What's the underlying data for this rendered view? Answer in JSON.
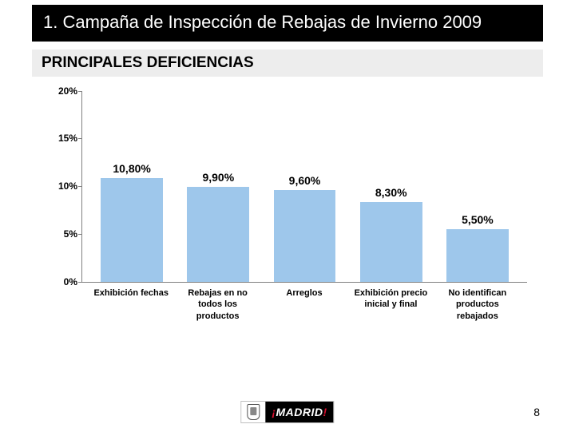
{
  "title": "1. Campaña de Inspección de Rebajas de Invierno 2009",
  "subtitle": "PRINCIPALES DEFICIENCIAS",
  "chart": {
    "type": "bar",
    "background_color": "#ffffff",
    "axis_color": "#808080",
    "bar_color": "#9ec7eb",
    "value_label_color": "#000000",
    "value_label_fontsize": 14,
    "xlabel_fontsize": 11,
    "ytick_fontsize": 12,
    "ylim": [
      0,
      20
    ],
    "ytick_step": 5,
    "yticks": [
      "0%",
      "5%",
      "10%",
      "15%",
      "20%"
    ],
    "bar_width_pct": 72,
    "categories": [
      "Exhibición fechas",
      "Rebajas en no todos los productos",
      "Arreglos",
      "Exhibición precio inicial y final",
      "No identifican productos rebajados"
    ],
    "values": [
      10.8,
      9.9,
      9.6,
      8.3,
      5.5
    ],
    "value_labels": [
      "10,80%",
      "9,90%",
      "9,60%",
      "8,30%",
      "5,50%"
    ]
  },
  "footer": {
    "page_number": "8",
    "logo_text": "MADRID",
    "logo_prefix": "¡",
    "logo_suffix": "!",
    "logo_bg": "#000000",
    "logo_accent": "#d80f2e"
  }
}
